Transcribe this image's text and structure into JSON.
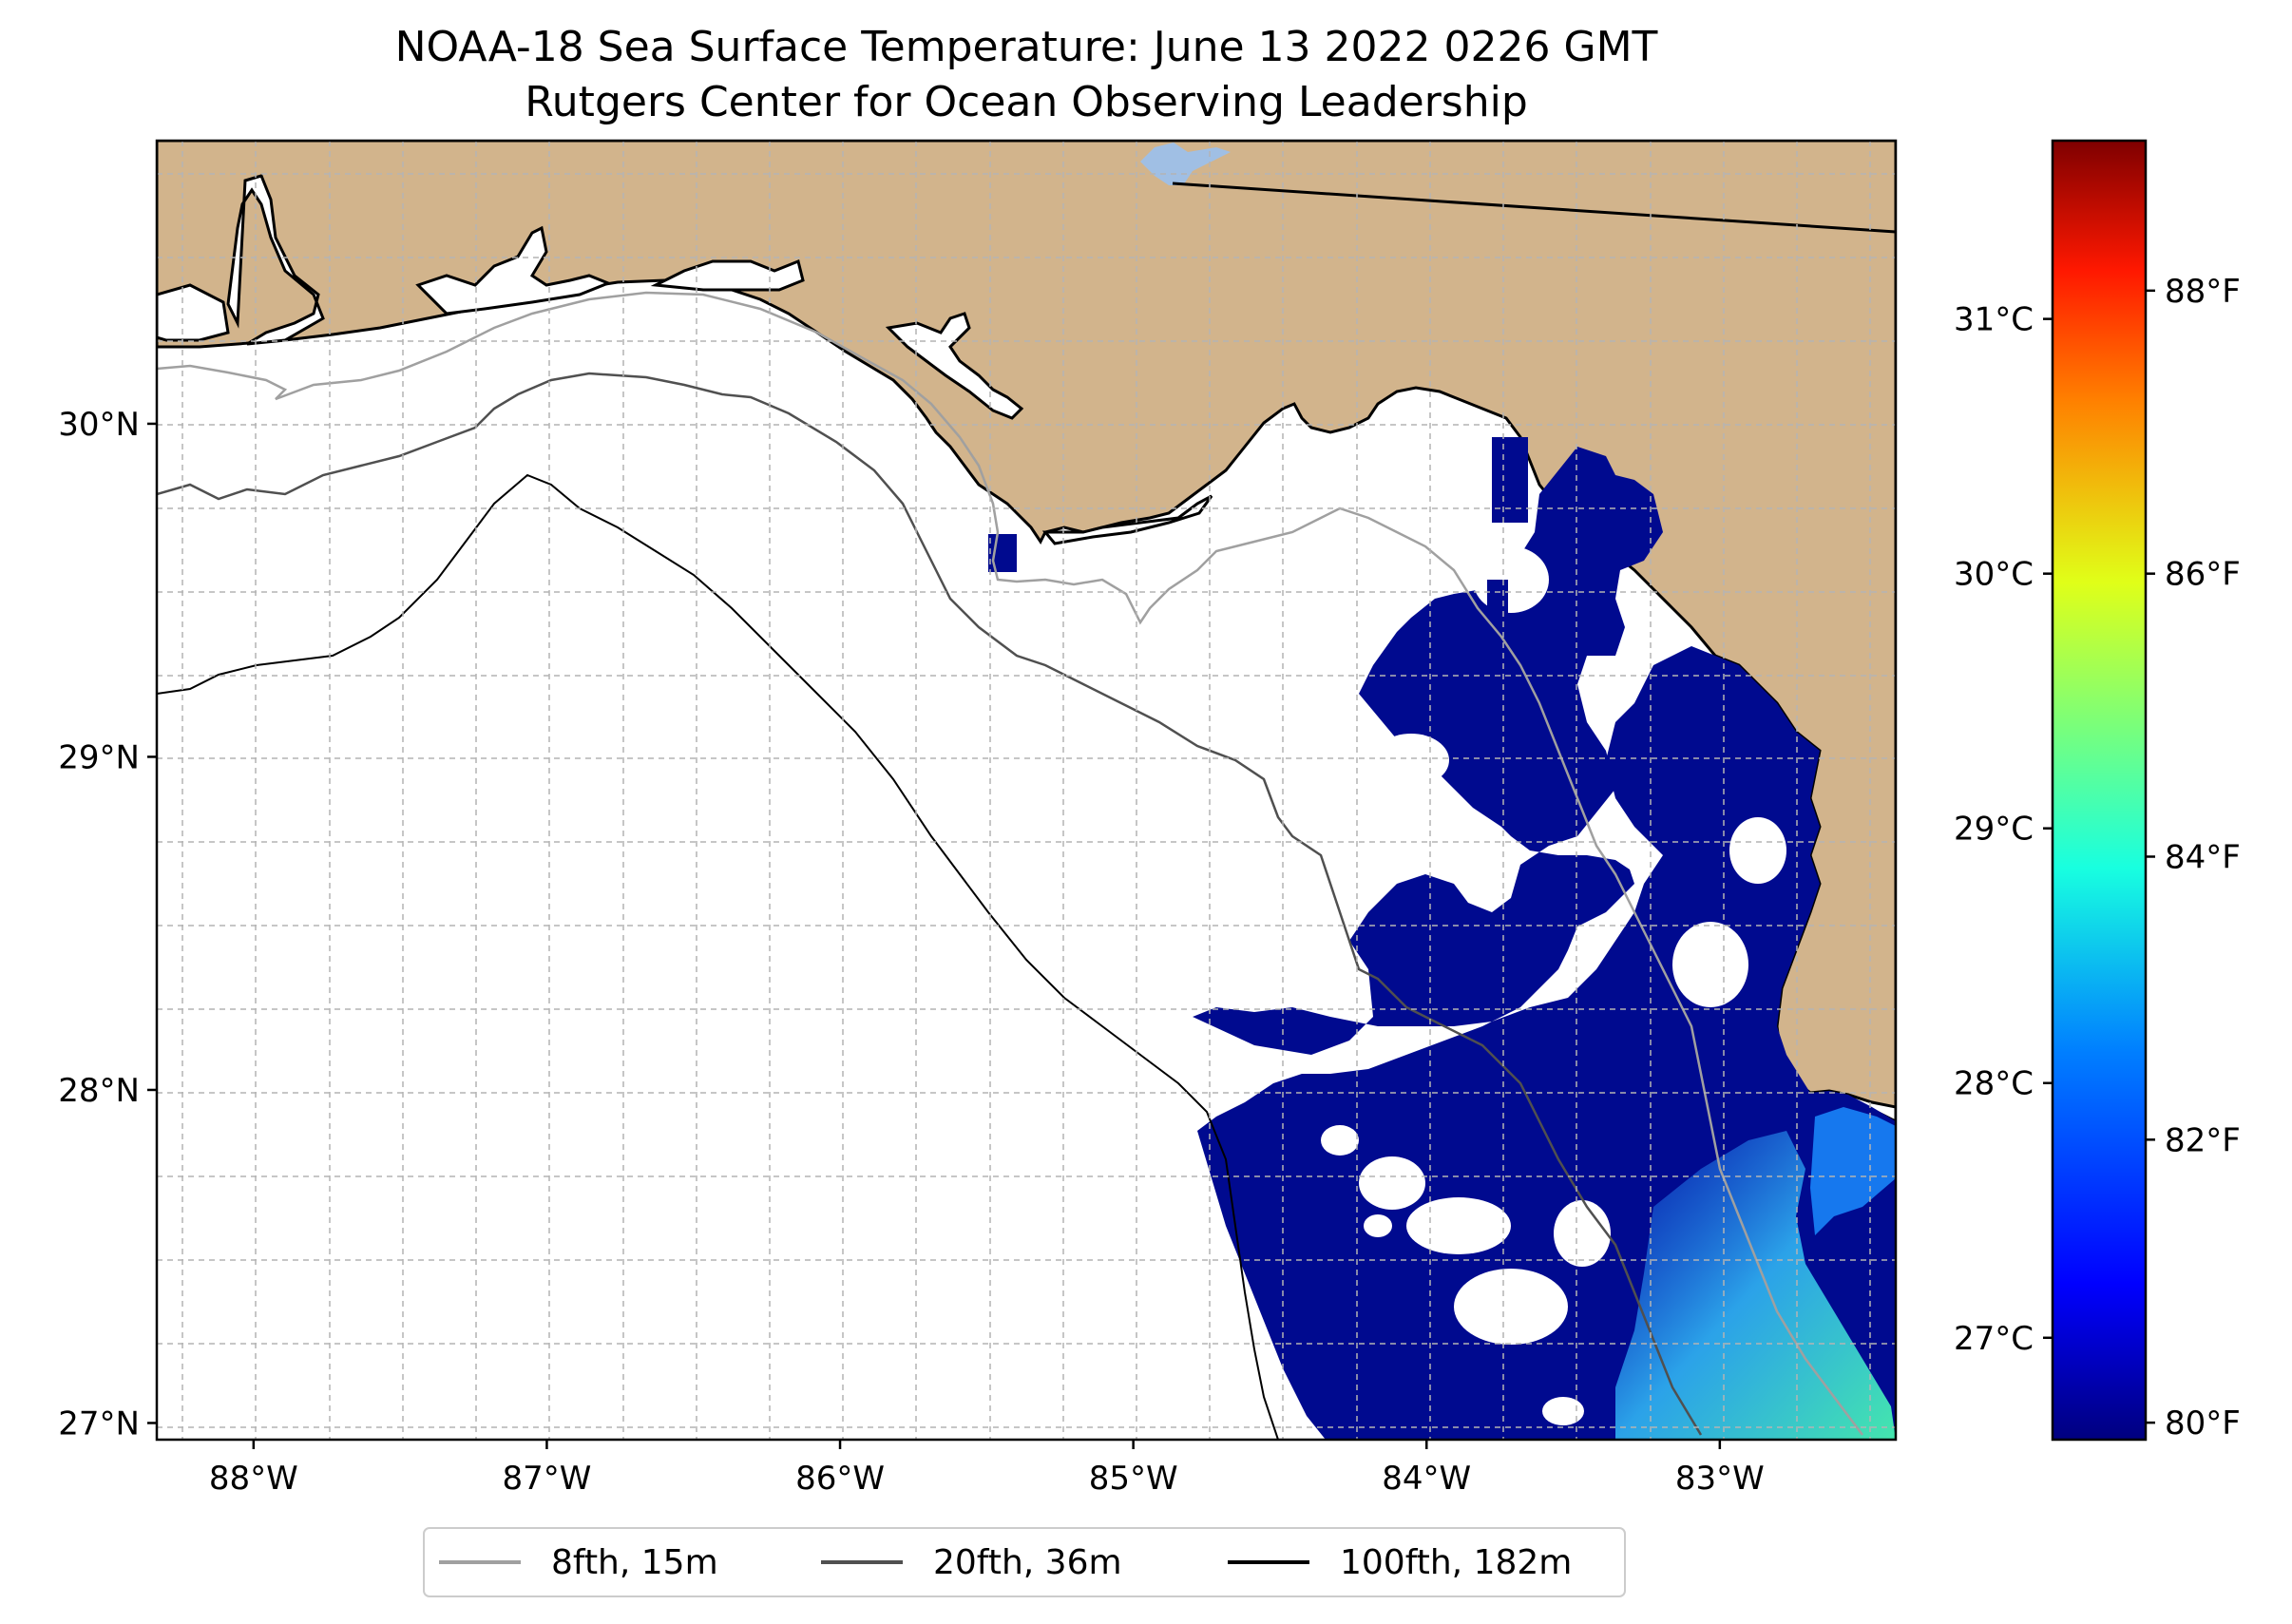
{
  "title": {
    "line1": "NOAA-18 Sea Surface Temperature: June 13 2022 0226 GMT",
    "line2": "Rutgers Center for Ocean Observing Leadership"
  },
  "map": {
    "lat_labels": [
      {
        "value": 30,
        "label": "30°N"
      },
      {
        "value": 29,
        "label": "29°N"
      },
      {
        "value": 28,
        "label": "28°N"
      },
      {
        "value": 27,
        "label": "27°N"
      }
    ],
    "lon_labels": [
      {
        "value": -88,
        "label": "88°W"
      },
      {
        "value": -87,
        "label": "87°W"
      },
      {
        "value": -86,
        "label": "86°W"
      },
      {
        "value": -85,
        "label": "85°W"
      },
      {
        "value": -84,
        "label": "84°W"
      },
      {
        "value": -83,
        "label": "83°W"
      }
    ],
    "lon_range": [
      -88.33,
      -82.4
    ],
    "lat_range": [
      26.95,
      30.85
    ],
    "colors": {
      "land": "#d2b48c",
      "ocean_nodata": "#ffffff",
      "sst_base": "#000a8f",
      "grid": "#b4b4b4",
      "lake": "#a0bfe4"
    }
  },
  "colorbar": {
    "celsius": [
      {
        "value": 31,
        "label": "31°C"
      },
      {
        "value": 30,
        "label": "30°C"
      },
      {
        "value": 29,
        "label": "29°C"
      },
      {
        "value": 28,
        "label": "28°C"
      },
      {
        "value": 27,
        "label": "27°C"
      }
    ],
    "fahrenheit": [
      {
        "value": 88,
        "label": "88°F"
      },
      {
        "value": 86,
        "label": "86°F"
      },
      {
        "value": 84,
        "label": "84°F"
      },
      {
        "value": 82,
        "label": "82°F"
      },
      {
        "value": 80,
        "label": "80°F"
      }
    ],
    "range_c": [
      26.6,
      31.7
    ],
    "colormap": [
      "#00007f",
      "#0000ff",
      "#0080ff",
      "#18ffe0",
      "#7aff7a",
      "#e0ff18",
      "#ff8000",
      "#ff1800",
      "#7f0000"
    ]
  },
  "legend": {
    "items": [
      {
        "label": "8fth, 15m",
        "color": "#a0a0a0"
      },
      {
        "label": "20fth, 36m",
        "color": "#505050"
      },
      {
        "label": "100fth, 182m",
        "color": "#000000"
      }
    ]
  }
}
